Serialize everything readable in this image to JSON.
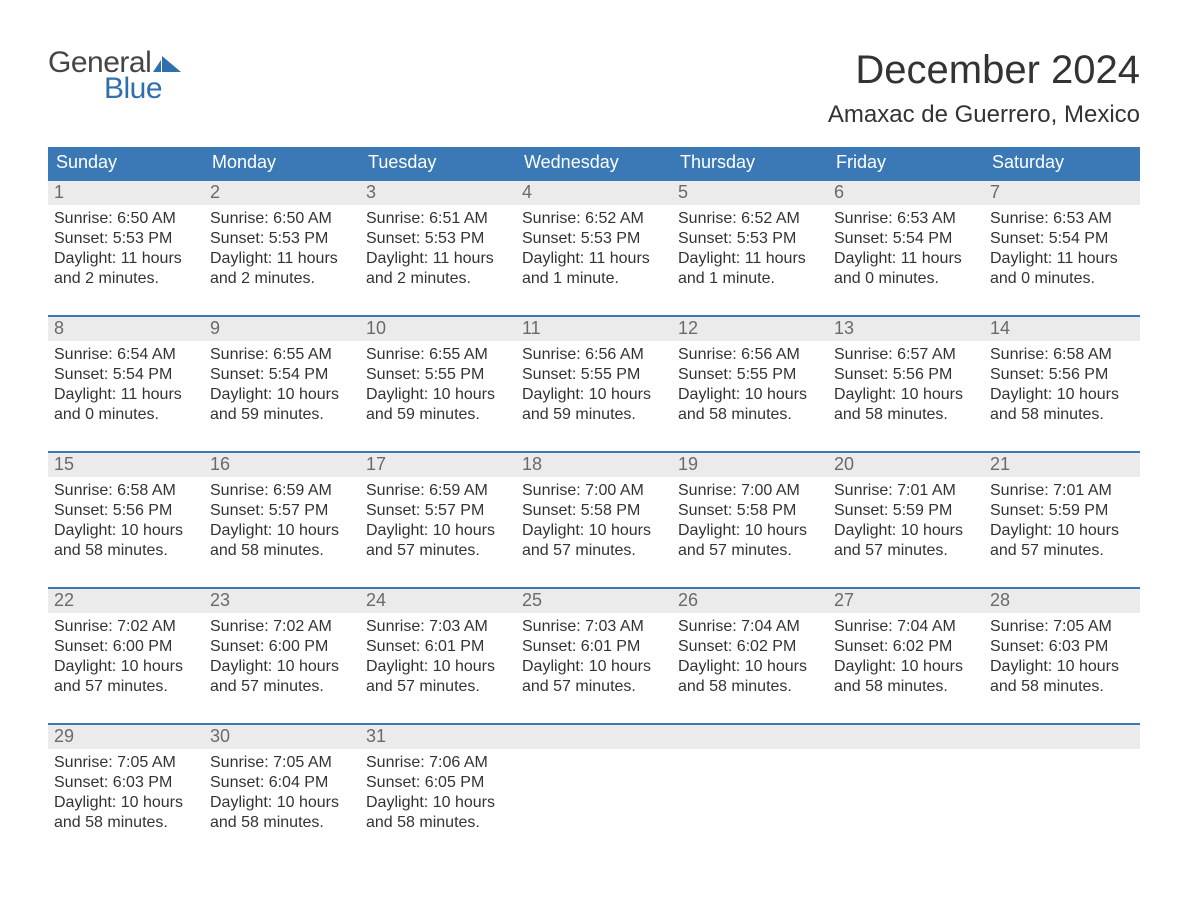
{
  "logo": {
    "text1": "General",
    "text2": "Blue"
  },
  "title": "December 2024",
  "location": "Amaxac de Guerrero, Mexico",
  "colors": {
    "header_bg": "#3b79b6",
    "header_text": "#ffffff",
    "daynum_bg": "#ebebeb",
    "daynum_text": "#6a6a6a",
    "body_text": "#333333",
    "logo_gray": "#454545",
    "logo_blue": "#2f6fad",
    "flag_fill": "#2f6fad"
  },
  "weekdays": [
    "Sunday",
    "Monday",
    "Tuesday",
    "Wednesday",
    "Thursday",
    "Friday",
    "Saturday"
  ],
  "weeks": [
    [
      {
        "n": "1",
        "sunrise": "Sunrise: 6:50 AM",
        "sunset": "Sunset: 5:53 PM",
        "day1": "Daylight: 11 hours",
        "day2": "and 2 minutes."
      },
      {
        "n": "2",
        "sunrise": "Sunrise: 6:50 AM",
        "sunset": "Sunset: 5:53 PM",
        "day1": "Daylight: 11 hours",
        "day2": "and 2 minutes."
      },
      {
        "n": "3",
        "sunrise": "Sunrise: 6:51 AM",
        "sunset": "Sunset: 5:53 PM",
        "day1": "Daylight: 11 hours",
        "day2": "and 2 minutes."
      },
      {
        "n": "4",
        "sunrise": "Sunrise: 6:52 AM",
        "sunset": "Sunset: 5:53 PM",
        "day1": "Daylight: 11 hours",
        "day2": "and 1 minute."
      },
      {
        "n": "5",
        "sunrise": "Sunrise: 6:52 AM",
        "sunset": "Sunset: 5:53 PM",
        "day1": "Daylight: 11 hours",
        "day2": "and 1 minute."
      },
      {
        "n": "6",
        "sunrise": "Sunrise: 6:53 AM",
        "sunset": "Sunset: 5:54 PM",
        "day1": "Daylight: 11 hours",
        "day2": "and 0 minutes."
      },
      {
        "n": "7",
        "sunrise": "Sunrise: 6:53 AM",
        "sunset": "Sunset: 5:54 PM",
        "day1": "Daylight: 11 hours",
        "day2": "and 0 minutes."
      }
    ],
    [
      {
        "n": "8",
        "sunrise": "Sunrise: 6:54 AM",
        "sunset": "Sunset: 5:54 PM",
        "day1": "Daylight: 11 hours",
        "day2": "and 0 minutes."
      },
      {
        "n": "9",
        "sunrise": "Sunrise: 6:55 AM",
        "sunset": "Sunset: 5:54 PM",
        "day1": "Daylight: 10 hours",
        "day2": "and 59 minutes."
      },
      {
        "n": "10",
        "sunrise": "Sunrise: 6:55 AM",
        "sunset": "Sunset: 5:55 PM",
        "day1": "Daylight: 10 hours",
        "day2": "and 59 minutes."
      },
      {
        "n": "11",
        "sunrise": "Sunrise: 6:56 AM",
        "sunset": "Sunset: 5:55 PM",
        "day1": "Daylight: 10 hours",
        "day2": "and 59 minutes."
      },
      {
        "n": "12",
        "sunrise": "Sunrise: 6:56 AM",
        "sunset": "Sunset: 5:55 PM",
        "day1": "Daylight: 10 hours",
        "day2": "and 58 minutes."
      },
      {
        "n": "13",
        "sunrise": "Sunrise: 6:57 AM",
        "sunset": "Sunset: 5:56 PM",
        "day1": "Daylight: 10 hours",
        "day2": "and 58 minutes."
      },
      {
        "n": "14",
        "sunrise": "Sunrise: 6:58 AM",
        "sunset": "Sunset: 5:56 PM",
        "day1": "Daylight: 10 hours",
        "day2": "and 58 minutes."
      }
    ],
    [
      {
        "n": "15",
        "sunrise": "Sunrise: 6:58 AM",
        "sunset": "Sunset: 5:56 PM",
        "day1": "Daylight: 10 hours",
        "day2": "and 58 minutes."
      },
      {
        "n": "16",
        "sunrise": "Sunrise: 6:59 AM",
        "sunset": "Sunset: 5:57 PM",
        "day1": "Daylight: 10 hours",
        "day2": "and 58 minutes."
      },
      {
        "n": "17",
        "sunrise": "Sunrise: 6:59 AM",
        "sunset": "Sunset: 5:57 PM",
        "day1": "Daylight: 10 hours",
        "day2": "and 57 minutes."
      },
      {
        "n": "18",
        "sunrise": "Sunrise: 7:00 AM",
        "sunset": "Sunset: 5:58 PM",
        "day1": "Daylight: 10 hours",
        "day2": "and 57 minutes."
      },
      {
        "n": "19",
        "sunrise": "Sunrise: 7:00 AM",
        "sunset": "Sunset: 5:58 PM",
        "day1": "Daylight: 10 hours",
        "day2": "and 57 minutes."
      },
      {
        "n": "20",
        "sunrise": "Sunrise: 7:01 AM",
        "sunset": "Sunset: 5:59 PM",
        "day1": "Daylight: 10 hours",
        "day2": "and 57 minutes."
      },
      {
        "n": "21",
        "sunrise": "Sunrise: 7:01 AM",
        "sunset": "Sunset: 5:59 PM",
        "day1": "Daylight: 10 hours",
        "day2": "and 57 minutes."
      }
    ],
    [
      {
        "n": "22",
        "sunrise": "Sunrise: 7:02 AM",
        "sunset": "Sunset: 6:00 PM",
        "day1": "Daylight: 10 hours",
        "day2": "and 57 minutes."
      },
      {
        "n": "23",
        "sunrise": "Sunrise: 7:02 AM",
        "sunset": "Sunset: 6:00 PM",
        "day1": "Daylight: 10 hours",
        "day2": "and 57 minutes."
      },
      {
        "n": "24",
        "sunrise": "Sunrise: 7:03 AM",
        "sunset": "Sunset: 6:01 PM",
        "day1": "Daylight: 10 hours",
        "day2": "and 57 minutes."
      },
      {
        "n": "25",
        "sunrise": "Sunrise: 7:03 AM",
        "sunset": "Sunset: 6:01 PM",
        "day1": "Daylight: 10 hours",
        "day2": "and 57 minutes."
      },
      {
        "n": "26",
        "sunrise": "Sunrise: 7:04 AM",
        "sunset": "Sunset: 6:02 PM",
        "day1": "Daylight: 10 hours",
        "day2": "and 58 minutes."
      },
      {
        "n": "27",
        "sunrise": "Sunrise: 7:04 AM",
        "sunset": "Sunset: 6:02 PM",
        "day1": "Daylight: 10 hours",
        "day2": "and 58 minutes."
      },
      {
        "n": "28",
        "sunrise": "Sunrise: 7:05 AM",
        "sunset": "Sunset: 6:03 PM",
        "day1": "Daylight: 10 hours",
        "day2": "and 58 minutes."
      }
    ],
    [
      {
        "n": "29",
        "sunrise": "Sunrise: 7:05 AM",
        "sunset": "Sunset: 6:03 PM",
        "day1": "Daylight: 10 hours",
        "day2": "and 58 minutes."
      },
      {
        "n": "30",
        "sunrise": "Sunrise: 7:05 AM",
        "sunset": "Sunset: 6:04 PM",
        "day1": "Daylight: 10 hours",
        "day2": "and 58 minutes."
      },
      {
        "n": "31",
        "sunrise": "Sunrise: 7:06 AM",
        "sunset": "Sunset: 6:05 PM",
        "day1": "Daylight: 10 hours",
        "day2": "and 58 minutes."
      },
      null,
      null,
      null,
      null
    ]
  ]
}
